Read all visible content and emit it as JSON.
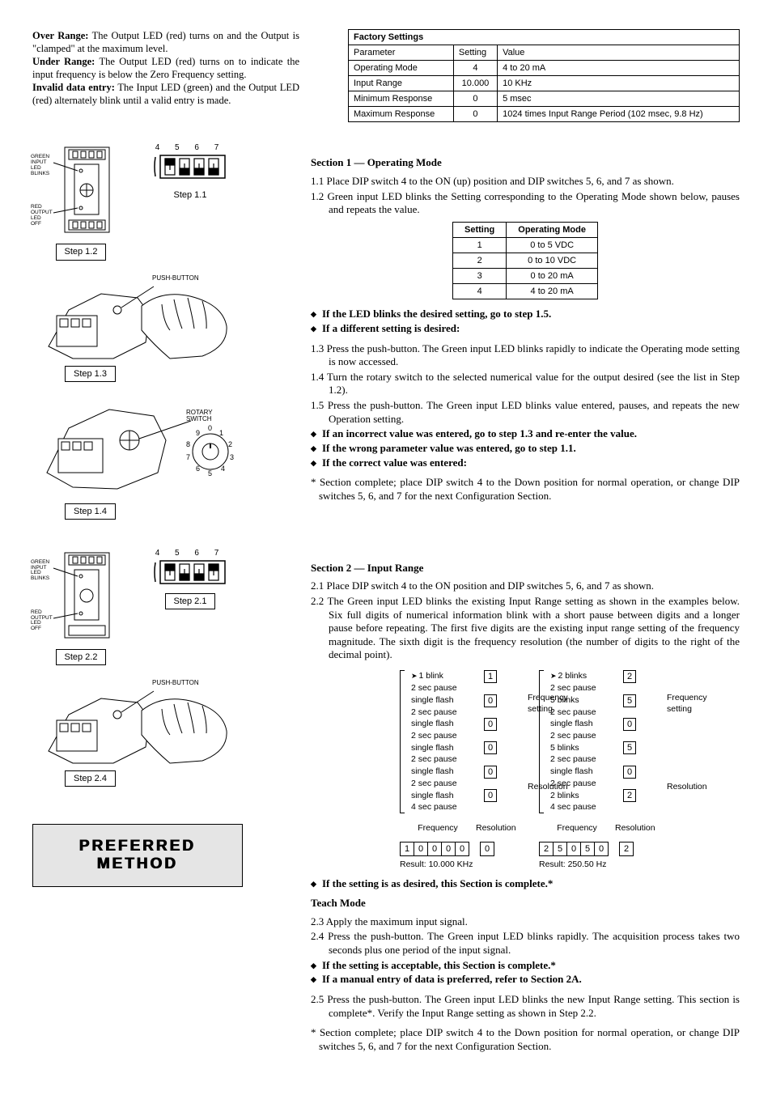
{
  "intro": {
    "over_heading": "Over Range:",
    "over_text": " The Output LED (red) turns on and the Output is \"clamped\" at the maximum level.",
    "under_heading": "Under Range:",
    "under_text": " The Output LED (red) turns on to indicate the input frequency is below the Zero Frequency setting.",
    "invalid_heading": "Invalid data entry:",
    "invalid_text": " The Input LED (green) and the Output LED (red) alternately blink until a valid entry is made."
  },
  "factory": {
    "title": "Factory Settings",
    "headers": [
      "Parameter",
      "Setting",
      "Value"
    ],
    "rows": [
      [
        "Operating Mode",
        "4",
        "4 to 20 mA"
      ],
      [
        "Input Range",
        "10.000",
        "10 KHz"
      ],
      [
        "Minimum Response",
        "0",
        "5 msec"
      ],
      [
        "Maximum Response",
        "0",
        "1024 times Input Range Period (102 msec, 9.8 Hz)"
      ]
    ]
  },
  "sec1": {
    "title": "Section 1 — Operating Mode",
    "s1_1": "1.1 Place DIP switch 4 to the ON (up) position and DIP switches 5, 6, and 7 as shown.",
    "s1_2": "1.2 Green input LED blinks the Setting corresponding to the Operating Mode shown below, pauses and repeats the value.",
    "opmode_headers": [
      "Setting",
      "Operating Mode"
    ],
    "opmode_rows": [
      [
        "1",
        "0 to 5 VDC"
      ],
      [
        "2",
        "0 to 10 VDC"
      ],
      [
        "3",
        "0 to 20 mA"
      ],
      [
        "4",
        "4 to 20 mA"
      ]
    ],
    "b1": "If the LED blinks the desired setting, go to step 1.5.",
    "b2": "If a different setting is desired:",
    "s1_3": "1.3 Press the push-button. The Green input LED blinks rapidly to indicate the Operating mode setting is now accessed.",
    "s1_4": "1.4 Turn the rotary switch to the selected numerical value for the output desired (see the list in Step 1.2).",
    "s1_5": "1.5 Press the push-button. The Green input LED blinks value entered, pauses, and repeats the new Operation setting.",
    "b3": "If an incorrect value was entered, go to step 1.3 and re-enter the value.",
    "b4": "If the wrong parameter value was entered, go to step 1.1.",
    "b5": "If the correct value was entered:",
    "note": "* Section complete; place DIP switch 4 to the Down position for normal operation, or change DIP switches 5, 6, and 7 for the next Configuration Section."
  },
  "sec2": {
    "title": "Section 2 — Input Range",
    "s2_1": "2.1 Place DIP switch 4 to the ON position and DIP switches 5, 6, and 7 as shown.",
    "s2_2": "2.2 The Green input LED blinks the existing Input Range setting as shown in the examples below. Six full digits of numerical information blink with a short pause between digits and a longer pause before repeating. The first five digits are the existing input range setting of the frequency magnitude. The sixth digit is the frequency resolution (the number of digits to the right of the decimal point).",
    "s2_3": "2.3 Apply the maximum input signal.",
    "s2_4": "2.4 Press the push-button. The Green input LED blinks rapidly. The acquisition process takes two seconds plus one period of the input signal.",
    "s2_5": "2.5 Press the push-button. The Green input LED blinks the new Input Range setting. This section is complete*. Verify the Input Range setting as shown in Step 2.2.",
    "b1": "If the setting is as desired, this Section is complete.*",
    "b2": "If the setting is acceptable, this Section is complete.*",
    "b3": "If a manual entry of data is preferred, refer to Section 2A.",
    "note": "* Section complete; place DIP switch 4 to the Down position for normal operation, or change DIP switches 5, 6, and 7 for the next Configuration Section.",
    "teach_title": "Teach Mode"
  },
  "blink": {
    "ex1": {
      "rows": [
        [
          "1 blink",
          "1"
        ],
        [
          "2 sec pause",
          ""
        ],
        [
          "single flash",
          "0"
        ],
        [
          "2 sec pause",
          ""
        ],
        [
          "single flash",
          "0"
        ],
        [
          "2 sec pause",
          ""
        ],
        [
          "single flash",
          "0"
        ],
        [
          "2 sec pause",
          ""
        ],
        [
          "single flash",
          "0"
        ],
        [
          "2 sec pause",
          ""
        ],
        [
          "single flash",
          "0"
        ],
        [
          "4 sec pause",
          ""
        ]
      ],
      "freq_label": "Frequency setting",
      "res_label": "Resolution",
      "head_freq": "Frequency",
      "head_res": "Resolution",
      "digits_freq": [
        "1",
        "0",
        "0",
        "0",
        "0"
      ],
      "digits_res": [
        "0"
      ],
      "result": "Result: 10.000 KHz"
    },
    "ex2": {
      "rows": [
        [
          "2 blinks",
          "2"
        ],
        [
          "2 sec pause",
          ""
        ],
        [
          "5 blinks",
          "5"
        ],
        [
          "2 sec pause",
          ""
        ],
        [
          "single flash",
          "0"
        ],
        [
          "2 sec pause",
          ""
        ],
        [
          "5 blinks",
          "5"
        ],
        [
          "2 sec pause",
          ""
        ],
        [
          "single flash",
          "0"
        ],
        [
          "2 sec pause",
          ""
        ],
        [
          "2 blinks",
          "2"
        ],
        [
          "4 sec pause",
          ""
        ]
      ],
      "freq_label": "Frequency setting",
      "res_label": "Resolution",
      "head_freq": "Frequency",
      "head_res": "Resolution",
      "digits_freq": [
        "2",
        "5",
        "0",
        "5",
        "0"
      ],
      "digits_res": [
        "2"
      ],
      "result": "Result: 250.50 Hz"
    }
  },
  "captions": {
    "s11": "Step 1.1",
    "s12": "Step 1.2",
    "s13": "Step 1.3",
    "s14": "Step 1.4",
    "s21": "Step 2.1",
    "s22": "Step 2.2",
    "s24": "Step 2.4",
    "pushbutton": "PUSH-BUTTON",
    "rotary": "ROTARY\nSWITCH",
    "green_led": "GREEN\nINPUT\nLED\nBLINKS",
    "red_led": "RED\nOUTPUT\nLED\nOFF",
    "preferred1": "PREFERRED",
    "preferred2": "METHOD"
  },
  "style": {
    "text_color": "#000000",
    "bg_color": "#ffffff",
    "grey_box": "#e5e5e5",
    "font_body": "Times New Roman",
    "font_ui": "Arial"
  }
}
